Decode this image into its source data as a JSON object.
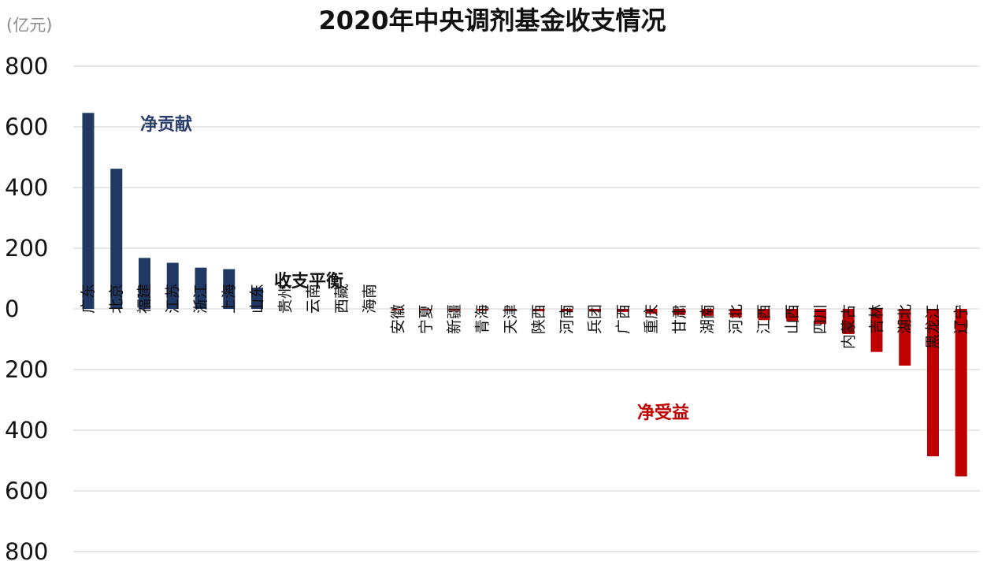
{
  "chart_data": {
    "type": "bar",
    "title": "2020年中央调剂基金收支情况",
    "unit_label": "(亿元)",
    "ylim": [
      -800,
      800
    ],
    "yticks": [
      800,
      600,
      400,
      200,
      0,
      -200,
      -400,
      -600,
      -800
    ],
    "ytick_labels": [
      "800",
      "600",
      "400",
      "200",
      "0",
      "200",
      "400",
      "600",
      "800"
    ],
    "grid": true,
    "colors": {
      "positive": "#203864",
      "negative": "#c00000"
    },
    "categories": [
      "广东",
      "北京",
      "福建",
      "江苏",
      "浙江",
      "上海",
      "山东",
      "贵州",
      "云南",
      "西藏",
      "海南",
      "安徽",
      "宁夏",
      "新疆",
      "青海",
      "天津",
      "陕西",
      "河南",
      "兵团",
      "广西",
      "重庆",
      "甘肃",
      "湖南",
      "河北",
      "江西",
      "山西",
      "四川",
      "内蒙古",
      "吉林",
      "湖北",
      "黑龙江",
      "辽宁"
    ],
    "values": [
      646,
      462,
      168,
      152,
      136,
      131,
      70,
      0,
      0,
      0,
      0,
      -2,
      -4,
      -6,
      -6,
      -7,
      -8,
      -8,
      -9,
      -10,
      -16,
      -20,
      -23,
      -28,
      -37,
      -42,
      -50,
      -83,
      -142,
      -187,
      -486,
      -552
    ],
    "annotations": {
      "positive": "净贡献",
      "balanced": "收支平衡",
      "negative": "净受益"
    }
  }
}
